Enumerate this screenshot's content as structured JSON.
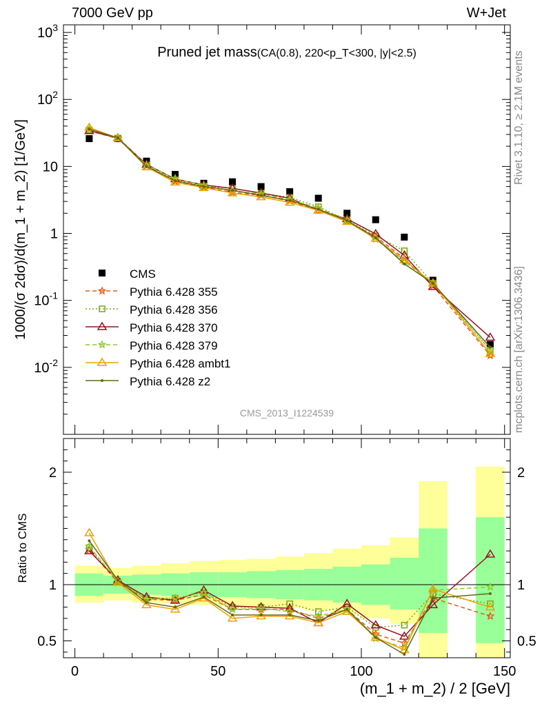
{
  "header": {
    "left": "7000 GeV pp",
    "right": "W+Jet"
  },
  "side_labels": {
    "rivet": "Rivet 3.1.10, ≥ 2.1M events",
    "mcplots": "mcplots.cern.ch [arXiv:1306.3436]"
  },
  "chart_data": [
    {
      "type": "line",
      "title_main": "Pruned jet mass",
      "title_sub": "(CA(0.8), 220<p_T<300, |y|<2.5)",
      "ylabel": "1000/(σ 2dσ)/d(m_1 + m_2) [1/GeV]",
      "watermark": "CMS_2013_I1224539",
      "y_scale": "log",
      "ylim": [
        0.001,
        1300
      ],
      "xlim": [
        -4,
        152
      ],
      "y_tick_labels": [
        "10^-2",
        "10^-1",
        "1",
        "10",
        "10^2",
        "10^3"
      ],
      "legend_position": "left-center",
      "x": [
        5,
        15,
        25,
        35,
        45,
        55,
        65,
        75,
        85,
        95,
        105,
        115,
        125,
        145
      ],
      "series": [
        {
          "name": "CMS",
          "color": "#000000",
          "marker": "filled-square",
          "line": "none",
          "values": [
            26,
            26,
            12,
            7.6,
            5.6,
            5.9,
            5.0,
            4.2,
            3.35,
            2.0,
            1.6,
            0.88,
            0.2,
            0.022
          ]
        },
        {
          "name": "Pythia 6.428 355",
          "color": "#ee5511",
          "marker": "star",
          "line": "dashed",
          "values": [
            34,
            26,
            10.2,
            6.0,
            4.9,
            4.1,
            3.7,
            3.05,
            2.2,
            1.52,
            0.9,
            0.42,
            0.165,
            0.015
          ]
        },
        {
          "name": "Pythia 6.428 356",
          "color": "#77aa11",
          "marker": "open-square",
          "line": "dotted",
          "values": [
            35,
            26.5,
            10.5,
            6.3,
            5.1,
            4.7,
            4.0,
            3.45,
            2.5,
            1.58,
            0.92,
            0.55,
            0.18,
            0.018
          ]
        },
        {
          "name": "Pythia 6.428 370",
          "color": "#991122",
          "marker": "open-triangle",
          "line": "solid",
          "values": [
            34,
            26.6,
            10.7,
            6.5,
            5.3,
            4.7,
            4.0,
            3.35,
            2.2,
            1.65,
            0.98,
            0.47,
            0.16,
            0.028
          ]
        },
        {
          "name": "Pythia 6.428 379",
          "color": "#88cc22",
          "marker": "star",
          "line": "dashed",
          "values": [
            36,
            26.5,
            10.5,
            6.6,
            5.2,
            4.3,
            3.9,
            3.2,
            2.4,
            1.58,
            0.82,
            0.38,
            0.18,
            0.018
          ]
        },
        {
          "name": "Pythia 6.428 ambt1",
          "color": "#eea000",
          "marker": "open-triangle",
          "line": "solid",
          "values": [
            38,
            26.5,
            9.8,
            5.8,
            4.8,
            4.0,
            3.5,
            2.9,
            2.2,
            1.5,
            0.84,
            0.4,
            0.18,
            0.016
          ]
        },
        {
          "name": "Pythia 6.428 z2",
          "color": "#666611",
          "marker": "dot",
          "line": "solid",
          "values": [
            36,
            26.8,
            10.0,
            6.1,
            5.0,
            4.4,
            3.7,
            3.1,
            2.3,
            1.56,
            0.86,
            0.35,
            0.18,
            0.02
          ]
        }
      ]
    },
    {
      "type": "line",
      "ylabel": "Ratio to CMS",
      "xlabel": "(m_1 + m_2) / 2 [GeV]",
      "xlim": [
        -4,
        152
      ],
      "ylim": [
        0.35,
        2.3
      ],
      "x_ticks": [
        0,
        50,
        100,
        150
      ],
      "y_ticks": [
        0.5,
        1,
        2
      ],
      "x": [
        5,
        15,
        25,
        35,
        45,
        55,
        65,
        75,
        85,
        95,
        105,
        115,
        125,
        145
      ],
      "bands": {
        "bin_edges": [
          0,
          10,
          20,
          30,
          40,
          50,
          60,
          70,
          80,
          90,
          100,
          110,
          120,
          130,
          140,
          150
        ],
        "inner": [
          [
            0.9,
            1.1
          ],
          [
            0.92,
            1.08
          ],
          [
            0.91,
            1.09
          ],
          [
            0.9,
            1.1
          ],
          [
            0.89,
            1.11
          ],
          [
            0.89,
            1.11
          ],
          [
            0.88,
            1.12
          ],
          [
            0.87,
            1.13
          ],
          [
            0.86,
            1.14
          ],
          [
            0.84,
            1.16
          ],
          [
            0.82,
            1.18
          ],
          [
            0.78,
            1.24
          ],
          [
            0.57,
            1.5
          ],
          null,
          [
            0.48,
            1.6
          ]
        ],
        "outer": [
          [
            0.84,
            1.17
          ],
          [
            0.86,
            1.15
          ],
          [
            0.84,
            1.17
          ],
          [
            0.83,
            1.19
          ],
          [
            0.82,
            1.21
          ],
          [
            0.81,
            1.22
          ],
          [
            0.8,
            1.23
          ],
          [
            0.79,
            1.25
          ],
          [
            0.77,
            1.28
          ],
          [
            0.74,
            1.32
          ],
          [
            0.7,
            1.35
          ],
          [
            0.65,
            1.42
          ],
          [
            0.35,
            1.92
          ],
          null,
          [
            0.35,
            2.05
          ]
        ],
        "inner_color": "#99ff99",
        "outer_color": "#ffff99"
      },
      "series": [
        {
          "name": "Pythia 6.428 355",
          "color": "#ee5511",
          "values": [
            1.31,
            1.02,
            0.87,
            0.86,
            0.91,
            0.78,
            0.78,
            0.78,
            0.7,
            0.78,
            0.56,
            0.48,
            0.88,
            0.72
          ]
        },
        {
          "name": "Pythia 6.428 356",
          "color": "#77aa11",
          "values": [
            1.33,
            1.03,
            0.88,
            0.88,
            0.93,
            0.8,
            0.8,
            0.83,
            0.76,
            0.8,
            0.62,
            0.64,
            0.92,
            0.83
          ]
        },
        {
          "name": "Pythia 6.428 370",
          "color": "#991122",
          "values": [
            1.3,
            1.04,
            0.89,
            0.86,
            0.95,
            0.81,
            0.8,
            0.79,
            0.66,
            0.83,
            0.64,
            0.54,
            0.82,
            1.27
          ]
        },
        {
          "name": "Pythia 6.428 379",
          "color": "#88cc22",
          "values": [
            1.34,
            1.03,
            0.87,
            0.88,
            0.93,
            0.78,
            0.79,
            0.76,
            0.72,
            0.78,
            0.52,
            0.44,
            0.95,
            0.98
          ]
        },
        {
          "name": "Pythia 6.428 ambt1",
          "color": "#eea000",
          "values": [
            1.46,
            1.02,
            0.82,
            0.78,
            0.88,
            0.7,
            0.72,
            0.72,
            0.66,
            0.76,
            0.53,
            0.42,
            0.96,
            0.8
          ]
        },
        {
          "name": "Pythia 6.428 z2",
          "color": "#666611",
          "values": [
            1.39,
            1.04,
            0.84,
            0.8,
            0.89,
            0.73,
            0.73,
            0.73,
            0.68,
            0.78,
            0.53,
            0.38,
            0.88,
            0.92
          ]
        }
      ]
    }
  ]
}
